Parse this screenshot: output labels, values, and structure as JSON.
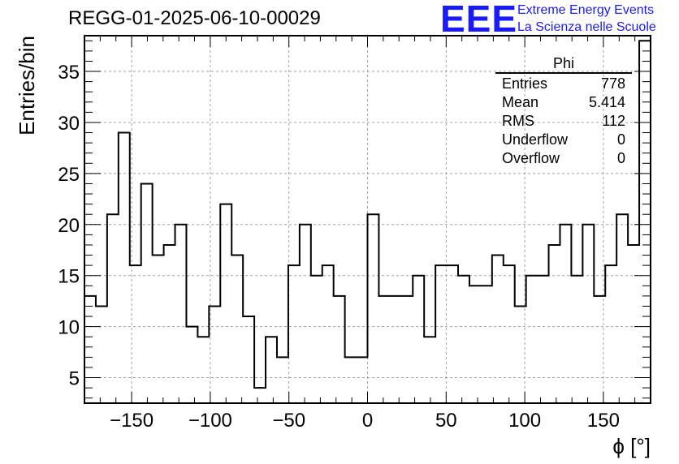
{
  "header": {
    "title": "REGG-01-2025-06-10-00029",
    "logo": "EEE",
    "logo_line1": "Extreme Energy Events",
    "logo_line2": "La Scienza nelle Scuole"
  },
  "stats": {
    "title": "Phi",
    "rows": [
      {
        "name": "Entries",
        "value": "778"
      },
      {
        "name": "Mean",
        "value": "5.414"
      },
      {
        "name": "RMS",
        "value": "112"
      },
      {
        "name": "Underflow",
        "value": "0"
      },
      {
        "name": "Overflow",
        "value": "0"
      }
    ]
  },
  "chart_data": {
    "type": "bar",
    "title": "REGG-01-2025-06-10-00029",
    "xlabel": "ϕ [°]",
    "ylabel": "Entries/bin",
    "xlim": [
      -180,
      180
    ],
    "ylim": [
      2.5,
      38.5
    ],
    "grid": true,
    "bin_width": 7.2,
    "values": [
      13,
      12,
      21,
      29,
      16,
      24,
      17,
      18,
      20,
      10,
      9,
      12,
      22,
      17,
      11,
      4,
      9,
      7,
      16,
      20,
      15,
      16,
      13,
      7,
      7,
      21,
      13,
      13,
      13,
      15,
      9,
      16,
      16,
      15,
      14,
      14,
      17,
      16,
      12,
      15,
      15,
      18,
      20,
      15,
      20,
      13,
      16,
      21,
      18,
      38
    ],
    "xticks": [
      -150,
      -100,
      -50,
      0,
      50,
      100,
      150
    ],
    "xtick_labels": [
      "−150",
      "−100",
      "−50",
      "0",
      "50",
      "100",
      "150"
    ],
    "yticks": [
      5,
      10,
      15,
      20,
      25,
      30,
      35
    ],
    "ytick_labels": [
      "5",
      "10",
      "15",
      "20",
      "25",
      "30",
      "35"
    ],
    "colors": {
      "line": "#000000",
      "grid": "#a0a0a0"
    }
  }
}
